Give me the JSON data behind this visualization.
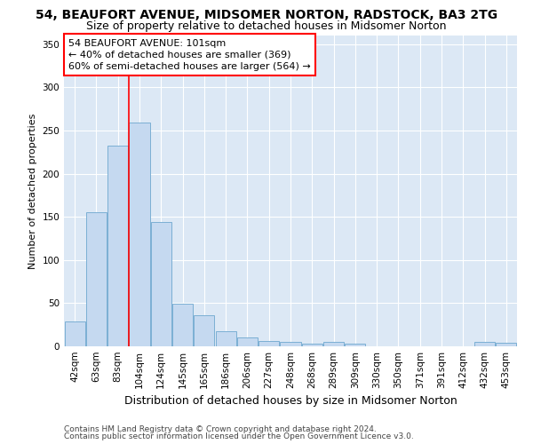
{
  "title": "54, BEAUFORT AVENUE, MIDSOMER NORTON, RADSTOCK, BA3 2TG",
  "subtitle": "Size of property relative to detached houses in Midsomer Norton",
  "xlabel": "Distribution of detached houses by size in Midsomer Norton",
  "ylabel": "Number of detached properties",
  "categories": [
    "42sqm",
    "63sqm",
    "83sqm",
    "104sqm",
    "124sqm",
    "145sqm",
    "165sqm",
    "186sqm",
    "206sqm",
    "227sqm",
    "248sqm",
    "268sqm",
    "289sqm",
    "309sqm",
    "330sqm",
    "350sqm",
    "371sqm",
    "391sqm",
    "412sqm",
    "432sqm",
    "453sqm"
  ],
  "values": [
    29,
    155,
    232,
    259,
    144,
    49,
    36,
    17,
    10,
    6,
    5,
    3,
    5,
    3,
    0,
    0,
    0,
    0,
    0,
    5,
    4
  ],
  "bar_color": "#c5d9f0",
  "bar_edge_color": "#7bafd4",
  "vline_x_index": 3,
  "vline_color": "red",
  "annotation_line1": "54 BEAUFORT AVENUE: 101sqm",
  "annotation_line2": "← 40% of detached houses are smaller (369)",
  "annotation_line3": "60% of semi-detached houses are larger (564) →",
  "annotation_box_color": "white",
  "annotation_box_edge_color": "red",
  "ylim": [
    0,
    360
  ],
  "yticks": [
    0,
    50,
    100,
    150,
    200,
    250,
    300,
    350
  ],
  "footer1": "Contains HM Land Registry data © Crown copyright and database right 2024.",
  "footer2": "Contains public sector information licensed under the Open Government Licence v3.0.",
  "background_color": "#ffffff",
  "plot_bg_color": "#dce8f5",
  "grid_color": "#ffffff",
  "title_fontsize": 10,
  "subtitle_fontsize": 9,
  "xlabel_fontsize": 9,
  "ylabel_fontsize": 8,
  "tick_fontsize": 7.5,
  "annotation_fontsize": 8,
  "footer_fontsize": 6.5
}
